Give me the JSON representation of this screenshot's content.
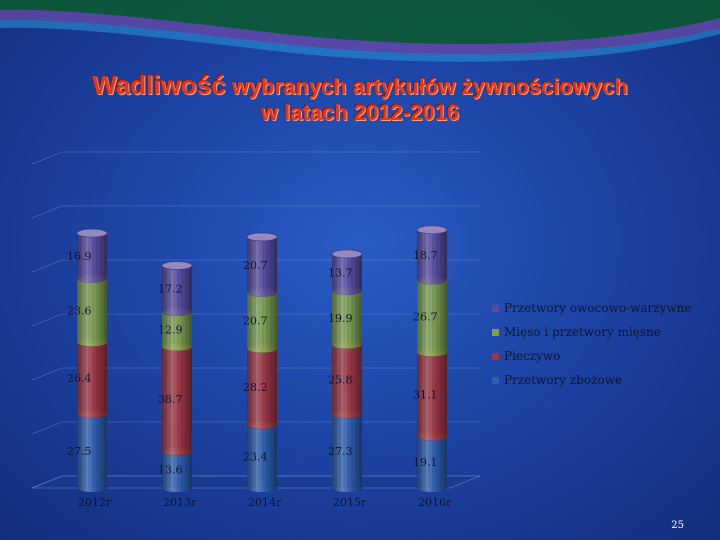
{
  "slide": {
    "title_word1": "Wadliwość",
    "title_rest": " wybranych artykułów żywnościowych",
    "title_line2": "w latach 2012-2016",
    "page_number": "25"
  },
  "colors": {
    "title": "#d43c2a",
    "background": "#1d44a6"
  },
  "chart_data": {
    "type": "bar",
    "stacked": true,
    "bar_style": "3d-cylinder",
    "categories": [
      "2012r",
      "2013r",
      "2014r",
      "2015r",
      "2016r"
    ],
    "series": [
      {
        "name": "Przetwory zbożowe",
        "values": [
          27.5,
          13.6,
          23.4,
          27.3,
          19.1
        ],
        "color": "#2e5fae"
      },
      {
        "name": "Pieczywo",
        "values": [
          26.4,
          38.7,
          28.2,
          25.8,
          31.1
        ],
        "color": "#a5343c"
      },
      {
        "name": "Mięso i przetwory mięsne",
        "values": [
          23.6,
          12.9,
          20.7,
          19.9,
          26.7
        ],
        "color": "#7fa148"
      },
      {
        "name": "Przetwory owocowo-warzywne",
        "values": [
          16.9,
          17.2,
          20.7,
          13.7,
          18.7
        ],
        "color": "#5a4a9e"
      }
    ],
    "legend_position": "right",
    "grid": true
  }
}
